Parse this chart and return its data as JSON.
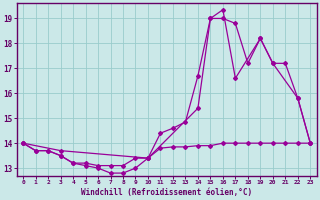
{
  "xlabel": "Windchill (Refroidissement éolien,°C)",
  "bg_color": "#cbe8e8",
  "line_color": "#990099",
  "grid_color": "#99cccc",
  "axis_color": "#660066",
  "text_color": "#660066",
  "xlim": [
    -0.5,
    23.5
  ],
  "ylim": [
    12.7,
    19.6
  ],
  "yticks": [
    13,
    14,
    15,
    16,
    17,
    18,
    19
  ],
  "xticks": [
    0,
    1,
    2,
    3,
    4,
    5,
    6,
    7,
    8,
    9,
    10,
    11,
    12,
    13,
    14,
    15,
    16,
    17,
    18,
    19,
    20,
    21,
    22,
    23
  ],
  "series1_x": [
    0,
    1,
    2,
    3,
    4,
    5,
    6,
    7,
    8,
    9,
    10,
    11,
    12,
    13,
    14,
    15,
    16,
    17,
    18,
    19,
    20,
    21,
    22,
    23
  ],
  "series1_y": [
    14.0,
    13.7,
    13.7,
    13.5,
    13.2,
    13.1,
    13.0,
    12.8,
    12.8,
    13.0,
    13.4,
    14.4,
    14.6,
    14.85,
    16.7,
    19.0,
    19.0,
    18.8,
    17.2,
    18.2,
    17.2,
    17.2,
    15.8,
    14.0
  ],
  "series2_x": [
    0,
    1,
    2,
    3,
    4,
    5,
    6,
    7,
    8,
    9,
    10,
    11,
    12,
    13,
    14,
    15,
    16,
    17,
    18,
    19,
    20,
    21,
    22,
    23
  ],
  "series2_y": [
    14.0,
    13.7,
    13.7,
    13.5,
    13.2,
    13.2,
    13.1,
    13.1,
    13.1,
    13.4,
    13.4,
    13.8,
    13.85,
    13.85,
    13.9,
    13.9,
    14.0,
    14.0,
    14.0,
    14.0,
    14.0,
    14.0,
    14.0,
    14.0
  ],
  "series3_x": [
    0,
    3,
    10,
    14,
    15,
    16,
    17,
    19,
    20,
    22,
    23
  ],
  "series3_y": [
    14.0,
    13.7,
    13.4,
    15.4,
    19.0,
    19.35,
    16.6,
    18.2,
    17.2,
    15.8,
    14.0
  ]
}
